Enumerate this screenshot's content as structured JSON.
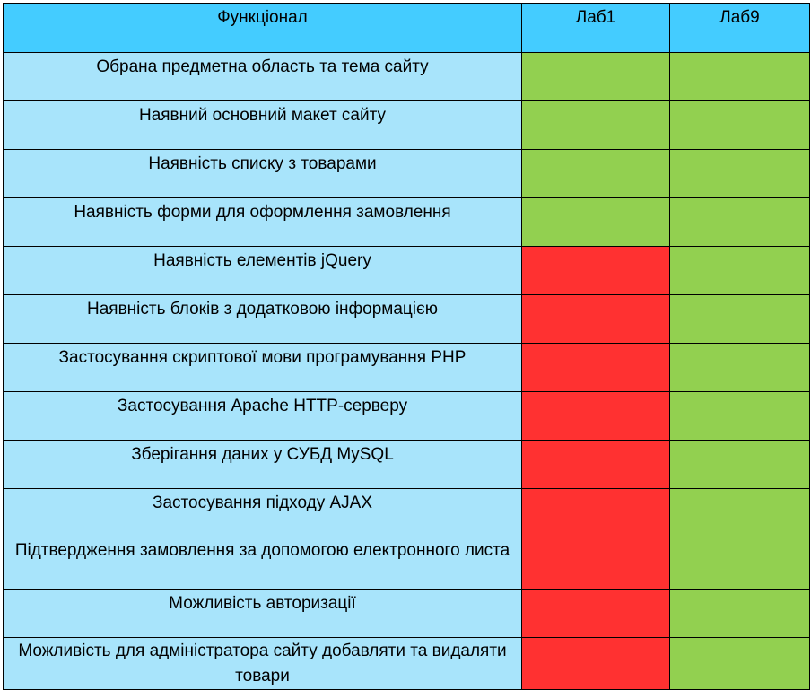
{
  "header": {
    "feature": "Функціонал",
    "lab1": "Лаб1",
    "lab9": "Лаб9"
  },
  "colors": {
    "header": "#44ccff",
    "feature_bg": "#a8e4fb",
    "done": "#92d050",
    "not_done": "#ff3131"
  },
  "rows": [
    {
      "feature": "Обрана предметна область та тема сайту",
      "lab1": "green",
      "lab9": "green"
    },
    {
      "feature": "Наявний основний макет сайту",
      "lab1": "green",
      "lab9": "green"
    },
    {
      "feature": "Наявність списку з товарами",
      "lab1": "green",
      "lab9": "green"
    },
    {
      "feature": "Наявність форми для оформлення замовлення",
      "lab1": "green",
      "lab9": "green"
    },
    {
      "feature": "Наявність елементів  jQuery",
      "lab1": "red",
      "lab9": "green"
    },
    {
      "feature": "Наявність блоків з додатковою інформацією",
      "lab1": "red",
      "lab9": "green"
    },
    {
      "feature": "Застосування скриптової мови програмування PHP",
      "lab1": "red",
      "lab9": "green"
    },
    {
      "feature": "Застосування Apache HTTP-серверу",
      "lab1": "red",
      "lab9": "green"
    },
    {
      "feature": "Зберігання даних у СУБД MySQL",
      "lab1": "red",
      "lab9": "green"
    },
    {
      "feature": "Застосування підходу AJAX",
      "lab1": "red",
      "lab9": "green"
    },
    {
      "feature": "Підтвердження замовлення за допомогою електронного листа",
      "lab1": "red",
      "lab9": "green"
    },
    {
      "feature": "Можливість авторизації",
      "lab1": "red",
      "lab9": "green"
    },
    {
      "feature": "Можливість для адміністратора сайту добавляти та видаляти товари",
      "lab1": "red",
      "lab9": "green"
    }
  ]
}
